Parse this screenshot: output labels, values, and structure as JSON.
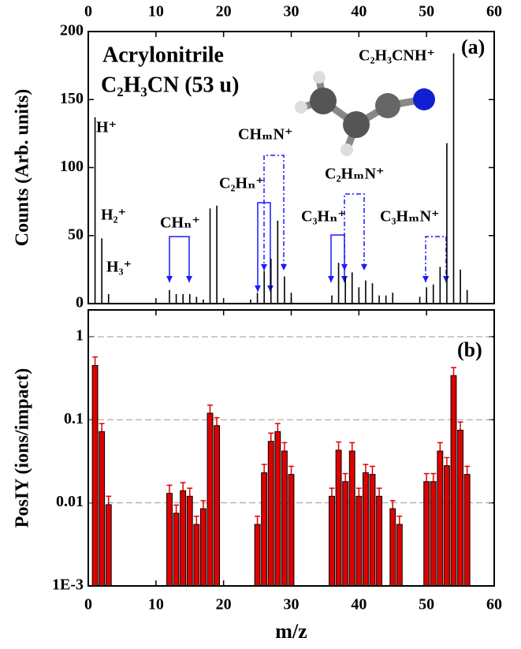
{
  "chart_data": [
    {
      "type": "stick",
      "ylabel": "Counts (Arb. units)",
      "annotations": [
        "Acrylonitrile",
        "C₂H₃CN (53 u)",
        "(a)",
        "C₂H₃CNH⁺",
        "H⁺",
        "H₂⁺",
        "H₃⁺",
        "CHₙ⁺",
        "C₂Hₙ⁺",
        "CHₘN⁺",
        "C₃Hₙ⁺",
        "C₂HₘN⁺",
        "C₃HₘN⁺"
      ],
      "x": [
        1,
        2,
        3,
        12,
        13,
        14,
        15,
        16,
        17,
        18,
        19,
        24,
        25,
        26,
        27,
        28,
        29,
        30,
        36,
        37,
        38,
        39,
        40,
        41,
        42,
        43,
        44,
        45,
        49,
        50,
        51,
        52,
        53,
        54,
        55,
        56
      ],
      "values": [
        137,
        48,
        7,
        10,
        7,
        7,
        7,
        5,
        3,
        70,
        72,
        3,
        8,
        24,
        33,
        61,
        20,
        8,
        6,
        30,
        20,
        23,
        12,
        17,
        15,
        6,
        6,
        8,
        5,
        12,
        14,
        27,
        118,
        184,
        25,
        10
      ],
      "color": "#000000",
      "xlim": [
        0,
        60
      ],
      "xticks": [
        0,
        10,
        20,
        30,
        40,
        50,
        60
      ],
      "ylim": [
        0,
        200
      ],
      "yticks": [
        0,
        50,
        100,
        150,
        200
      ]
    },
    {
      "type": "bar",
      "xlabel": "m/z",
      "ylabel": "PosIY (ions/impact)",
      "annotations": [
        "(b)"
      ],
      "x": [
        1,
        2,
        3,
        12,
        13,
        14,
        15,
        16,
        17,
        18,
        19,
        25,
        26,
        27,
        28,
        29,
        30,
        36,
        37,
        38,
        39,
        40,
        41,
        42,
        43,
        45,
        46,
        50,
        51,
        52,
        53,
        54,
        55,
        56
      ],
      "values": [
        0.45,
        0.072,
        0.0095,
        0.013,
        0.0075,
        0.014,
        0.012,
        0.0055,
        0.0085,
        0.12,
        0.085,
        0.0055,
        0.023,
        0.055,
        0.072,
        0.042,
        0.022,
        0.012,
        0.043,
        0.018,
        0.042,
        0.012,
        0.023,
        0.022,
        0.012,
        0.0085,
        0.0055,
        0.018,
        0.018,
        0.042,
        0.028,
        0.34,
        0.075,
        0.022
      ],
      "errors": [
        0.12,
        0.018,
        0.0025,
        0.0033,
        0.0019,
        0.0035,
        0.003,
        0.0014,
        0.0021,
        0.03,
        0.021,
        0.0014,
        0.006,
        0.014,
        0.018,
        0.011,
        0.0055,
        0.003,
        0.011,
        0.0045,
        0.011,
        0.003,
        0.006,
        0.0055,
        0.003,
        0.0021,
        0.0014,
        0.0045,
        0.0045,
        0.011,
        0.007,
        0.085,
        0.019,
        0.0055
      ],
      "color": "#dd0000",
      "log_scale": true,
      "grid": true,
      "xlim": [
        0,
        60
      ],
      "xticks": [
        0,
        10,
        20,
        30,
        40,
        50,
        60
      ],
      "ylim": [
        0.001,
        2.1
      ],
      "yticks": [
        {
          "value": 0.001,
          "label": "1E-3"
        },
        0.01,
        0.1,
        1
      ]
    }
  ]
}
